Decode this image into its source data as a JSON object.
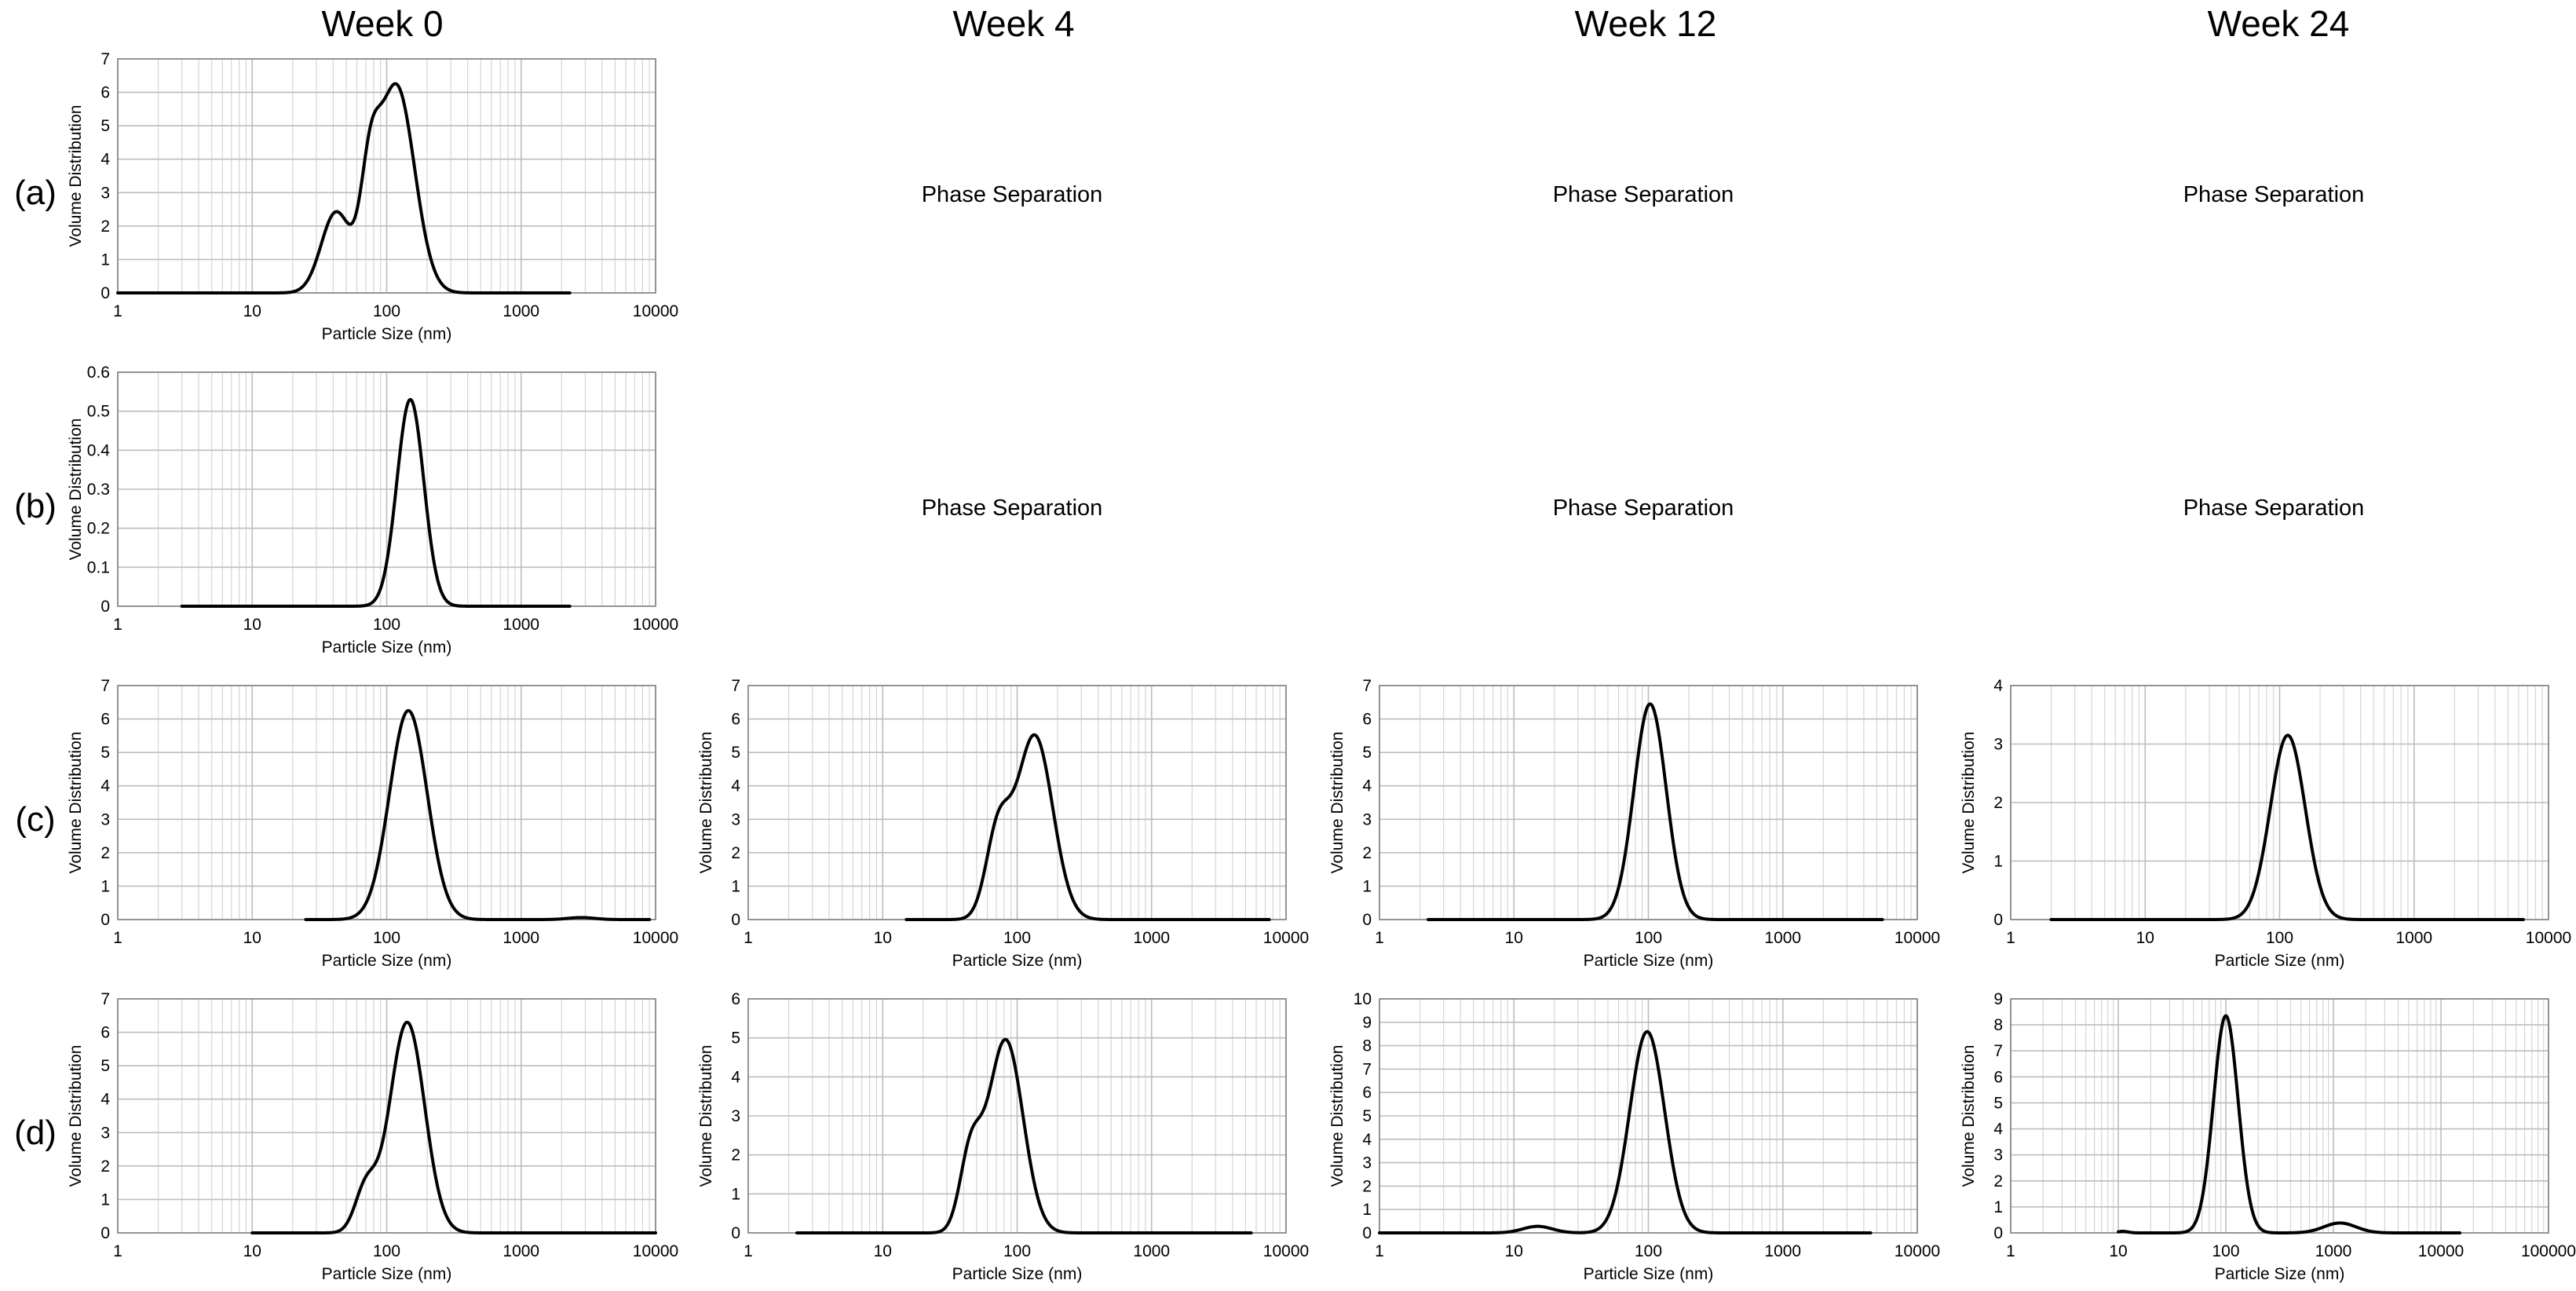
{
  "figure": {
    "columns": [
      "Week 0",
      "Week 4",
      "Week 12",
      "Week 24"
    ],
    "rows": [
      "(a)",
      "(b)",
      "(c)",
      "(d)"
    ]
  },
  "chart_data": [
    {
      "id": "a-week0",
      "row": 0,
      "col": 0,
      "type": "line",
      "title": "",
      "xlabel": "Particle Size (nm)",
      "ylabel": "Volume Distribution",
      "xscale": "log",
      "xlim": [
        1,
        10000
      ],
      "x_ticks": [
        "1",
        "10",
        "100",
        "1000",
        "10000"
      ],
      "ylim": [
        0,
        7
      ],
      "y_ticks": [
        "0",
        "1",
        "2",
        "3",
        "4",
        "5",
        "6",
        "7"
      ],
      "grid": true,
      "legend": "none",
      "series": [
        {
          "name": "",
          "peaks": [
            [
              42,
              2.4,
              0.11
            ],
            [
              75,
              2.6,
              0.07
            ],
            [
              118,
              6.2,
              0.135
            ]
          ],
          "x_start": 1,
          "x_end": 2300
        }
      ]
    },
    {
      "id": "b-week0",
      "row": 1,
      "col": 0,
      "type": "line",
      "title": "",
      "xlabel": "Particle Size (nm)",
      "ylabel": "Volume Distribution",
      "xscale": "log",
      "xlim": [
        1,
        10000
      ],
      "x_ticks": [
        "1",
        "10",
        "100",
        "1000",
        "10000"
      ],
      "ylim": [
        0,
        0.6
      ],
      "y_ticks": [
        "0",
        "0.1",
        "0.2",
        "0.3",
        "0.4",
        "0.5",
        "0.6"
      ],
      "grid": true,
      "legend": "none",
      "series": [
        {
          "name": "",
          "peaks": [
            [
              150,
              0.53,
              0.1
            ]
          ],
          "x_start": 3,
          "x_end": 2300
        }
      ]
    },
    {
      "id": "c-week0",
      "row": 2,
      "col": 0,
      "type": "line",
      "title": "",
      "xlabel": "Particle Size (nm)",
      "ylabel": "Volume Distribution",
      "xscale": "log",
      "xlim": [
        1,
        10000
      ],
      "x_ticks": [
        "1",
        "10",
        "100",
        "1000",
        "10000"
      ],
      "ylim": [
        0,
        7
      ],
      "y_ticks": [
        "0",
        "1",
        "2",
        "3",
        "4",
        "5",
        "6",
        "7"
      ],
      "grid": true,
      "legend": "none",
      "series": [
        {
          "name": "",
          "peaks": [
            [
              145,
              6.25,
              0.14
            ],
            [
              2800,
              0.06,
              0.1
            ]
          ],
          "x_start": 25,
          "x_end": 9000
        }
      ]
    },
    {
      "id": "c-week4",
      "row": 2,
      "col": 1,
      "type": "line",
      "title": "",
      "xlabel": "Particle Size (nm)",
      "ylabel": "Volume Distribution",
      "xscale": "log",
      "xlim": [
        1,
        10000
      ],
      "x_ticks": [
        "1",
        "10",
        "100",
        "1000",
        "10000"
      ],
      "ylim": [
        0,
        7
      ],
      "y_ticks": [
        "0",
        "1",
        "2",
        "3",
        "4",
        "5",
        "6",
        "7"
      ],
      "grid": true,
      "legend": "none",
      "series": [
        {
          "name": "",
          "peaks": [
            [
              72,
              2.5,
              0.09
            ],
            [
              135,
              5.5,
              0.135
            ]
          ],
          "x_start": 15,
          "x_end": 7500
        }
      ]
    },
    {
      "id": "c-week12",
      "row": 2,
      "col": 2,
      "type": "line",
      "title": "",
      "xlabel": "Particle Size (nm)",
      "ylabel": "Volume Distribution",
      "xscale": "log",
      "xlim": [
        1,
        10000
      ],
      "x_ticks": [
        "1",
        "10",
        "100",
        "1000",
        "10000"
      ],
      "ylim": [
        0,
        7
      ],
      "y_ticks": [
        "0",
        "1",
        "2",
        "3",
        "4",
        "5",
        "6",
        "7"
      ],
      "grid": true,
      "legend": "none",
      "series": [
        {
          "name": "",
          "peaks": [
            [
              103,
              6.45,
              0.12
            ]
          ],
          "x_start": 2.3,
          "x_end": 5500
        }
      ]
    },
    {
      "id": "c-week24",
      "row": 2,
      "col": 3,
      "type": "line",
      "title": "",
      "xlabel": "Particle Size (nm)",
      "ylabel": "Volume Distribution",
      "xscale": "log",
      "xlim": [
        1,
        10000
      ],
      "x_ticks": [
        "1",
        "10",
        "100",
        "1000",
        "10000"
      ],
      "ylim": [
        0,
        4
      ],
      "y_ticks": [
        "0",
        "1",
        "2",
        "3",
        "4"
      ],
      "grid": true,
      "legend": "none",
      "series": [
        {
          "name": "",
          "peaks": [
            [
              115,
              3.15,
              0.13
            ]
          ],
          "x_start": 2,
          "x_end": 6500
        }
      ]
    },
    {
      "id": "d-week0",
      "row": 3,
      "col": 0,
      "type": "line",
      "title": "",
      "xlabel": "Particle Size (nm)",
      "ylabel": "Volume Distribution",
      "xscale": "log",
      "xlim": [
        1,
        10000
      ],
      "x_ticks": [
        "1",
        "10",
        "100",
        "1000",
        "10000"
      ],
      "ylim": [
        0,
        7
      ],
      "y_ticks": [
        "0",
        "1",
        "2",
        "3",
        "4",
        "5",
        "6",
        "7"
      ],
      "grid": true,
      "legend": "none",
      "series": [
        {
          "name": "",
          "peaks": [
            [
              70,
              1.3,
              0.08
            ],
            [
              142,
              6.3,
              0.13
            ]
          ],
          "x_start": 10,
          "x_end": 10000
        }
      ]
    },
    {
      "id": "d-week4",
      "row": 3,
      "col": 1,
      "type": "line",
      "title": "",
      "xlabel": "Particle Size (nm)",
      "ylabel": "Volume Distribution",
      "xscale": "log",
      "xlim": [
        1,
        10000
      ],
      "x_ticks": [
        "1",
        "10",
        "100",
        "1000",
        "10000"
      ],
      "ylim": [
        0,
        6
      ],
      "y_ticks": [
        "0",
        "1",
        "2",
        "3",
        "4",
        "5",
        "6"
      ],
      "grid": true,
      "legend": "none",
      "series": [
        {
          "name": "",
          "peaks": [
            [
              45,
              1.9,
              0.08
            ],
            [
              82,
              4.95,
              0.13
            ]
          ],
          "x_start": 2.3,
          "x_end": 5500
        }
      ]
    },
    {
      "id": "d-week12",
      "row": 3,
      "col": 2,
      "type": "line",
      "title": "",
      "xlabel": "Particle Size (nm)",
      "ylabel": "Volume Distribution",
      "xscale": "log",
      "xlim": [
        1,
        10000
      ],
      "x_ticks": [
        "1",
        "10",
        "100",
        "1000",
        "10000"
      ],
      "ylim": [
        0,
        10
      ],
      "y_ticks": [
        "0",
        "1",
        "2",
        "3",
        "4",
        "5",
        "6",
        "7",
        "8",
        "9",
        "10"
      ],
      "grid": true,
      "legend": "none",
      "series": [
        {
          "name": "",
          "peaks": [
            [
              15,
              0.28,
              0.11
            ],
            [
              98,
              8.6,
              0.13
            ]
          ],
          "x_start": 1,
          "x_end": 4500
        }
      ]
    },
    {
      "id": "d-week24",
      "row": 3,
      "col": 3,
      "type": "line",
      "title": "",
      "xlabel": "Particle Size (nm)",
      "ylabel": "Volume Distribution",
      "xscale": "log",
      "xlim": [
        1,
        100000
      ],
      "x_ticks": [
        "1",
        "10",
        "100",
        "1000",
        "10000",
        "100000"
      ],
      "ylim": [
        0,
        9
      ],
      "y_ticks": [
        "0",
        "1",
        "2",
        "3",
        "4",
        "5",
        "6",
        "7",
        "8",
        "9"
      ],
      "grid": true,
      "legend": "none",
      "series": [
        {
          "name": "",
          "peaks": [
            [
              11,
              0.06,
              0.05
            ],
            [
              100,
              8.35,
              0.115
            ],
            [
              1150,
              0.38,
              0.15
            ]
          ],
          "x_start": 10,
          "x_end": 15000
        }
      ]
    }
  ],
  "phase_separation": [
    {
      "row": 0,
      "col": 1,
      "text": "Phase Separation"
    },
    {
      "row": 0,
      "col": 2,
      "text": "Phase Separation"
    },
    {
      "row": 0,
      "col": 3,
      "text": "Phase Separation"
    },
    {
      "row": 1,
      "col": 1,
      "text": "Phase Separation"
    },
    {
      "row": 1,
      "col": 2,
      "text": "Phase Separation"
    },
    {
      "row": 1,
      "col": 3,
      "text": "Phase Separation"
    }
  ]
}
